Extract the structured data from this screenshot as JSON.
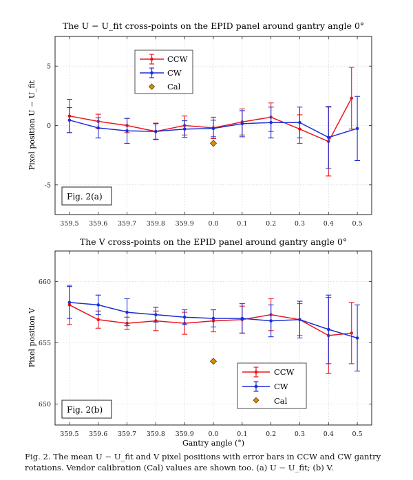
{
  "caption": "Fig. 2. The mean U − U_fit and V pixel positions with error bars in CCW and CW gantry rotations. Vendor calibration (Cal) values are shown too. (a) U − U_fit; (b) V.",
  "colors": {
    "ccw": "#e8161b",
    "cw": "#1c2fd6",
    "cal": "#d98b0a",
    "cal_edge": "#5a3a00",
    "grid": "#c7c7c7",
    "axis": "#222222"
  },
  "chart_data": [
    {
      "type": "line",
      "title": "The U − U_fit cross-points on the EPID panel around gantry angle 0°",
      "xlabel": "",
      "ylabel": "Pixel position U − U_fit",
      "panel_label": "Fig. 2(a)",
      "categories": [
        "359.5",
        "359.6",
        "359.7",
        "359.8",
        "359.9",
        "0.0",
        "0.1",
        "0.2",
        "0.3",
        "0.4",
        "0.5"
      ],
      "xlim": [
        359.45,
        360.55
      ],
      "ylim": [
        -7.5,
        7.5
      ],
      "yticks": [
        -5,
        0,
        5
      ],
      "grid": true,
      "legend_position": "top-center",
      "series": [
        {
          "name": "CCW",
          "x": [
            359.5,
            359.6,
            359.7,
            359.8,
            359.9,
            360.0,
            360.1,
            360.2,
            360.3,
            360.4,
            360.48
          ],
          "values": [
            0.8,
            0.35,
            0.0,
            -0.5,
            0.0,
            -0.2,
            0.3,
            0.7,
            -0.3,
            -1.35,
            2.3
          ],
          "err": [
            1.4,
            0.6,
            0.6,
            0.7,
            0.8,
            0.9,
            1.1,
            1.2,
            1.2,
            2.9,
            2.6
          ]
        },
        {
          "name": "CW",
          "x": [
            359.5,
            359.6,
            359.7,
            359.8,
            359.9,
            360.0,
            360.1,
            360.2,
            360.3,
            360.4,
            360.5
          ],
          "values": [
            0.45,
            -0.2,
            -0.45,
            -0.5,
            -0.3,
            -0.25,
            0.15,
            0.25,
            0.25,
            -1.0,
            -0.25
          ],
          "err": [
            1.05,
            0.85,
            1.05,
            0.65,
            0.7,
            0.7,
            1.1,
            1.3,
            1.3,
            2.6,
            2.7
          ]
        },
        {
          "name": "Cal",
          "x": [
            360.0
          ],
          "values": [
            -1.5
          ]
        }
      ]
    },
    {
      "type": "line",
      "title": "The V cross-points on the EPID panel around gantry angle 0°",
      "xlabel": "Gantry angle (°)",
      "ylabel": "Pixel position V",
      "panel_label": "Fig. 2(b)",
      "categories": [
        "359.5",
        "359.6",
        "359.7",
        "359.8",
        "359.9",
        "0.0",
        "0.1",
        "0.2",
        "0.3",
        "0.4",
        "0.5"
      ],
      "xlim": [
        359.45,
        360.55
      ],
      "ylim": [
        648.3,
        662.5
      ],
      "yticks": [
        650,
        655,
        660
      ],
      "grid": true,
      "legend_position": "bottom-right",
      "series": [
        {
          "name": "CCW",
          "x": [
            359.5,
            359.6,
            359.7,
            359.8,
            359.9,
            360.0,
            360.1,
            360.2,
            360.3,
            360.4,
            360.48
          ],
          "values": [
            658.1,
            656.9,
            656.6,
            656.8,
            656.6,
            656.8,
            656.9,
            657.3,
            656.9,
            655.6,
            655.8
          ],
          "err": [
            1.6,
            0.7,
            0.5,
            0.8,
            0.9,
            0.9,
            1.1,
            1.3,
            1.3,
            3.1,
            2.5
          ]
        },
        {
          "name": "CW",
          "x": [
            359.5,
            359.6,
            359.7,
            359.8,
            359.9,
            360.0,
            360.1,
            360.2,
            360.3,
            360.4,
            360.5
          ],
          "values": [
            658.3,
            658.1,
            657.5,
            657.3,
            657.1,
            657.0,
            657.0,
            656.8,
            656.9,
            656.1,
            655.4
          ],
          "err": [
            1.3,
            0.8,
            1.1,
            0.6,
            0.6,
            0.7,
            1.2,
            1.3,
            1.5,
            2.8,
            2.7
          ]
        },
        {
          "name": "Cal",
          "x": [
            360.0
          ],
          "values": [
            653.5
          ]
        }
      ]
    }
  ]
}
